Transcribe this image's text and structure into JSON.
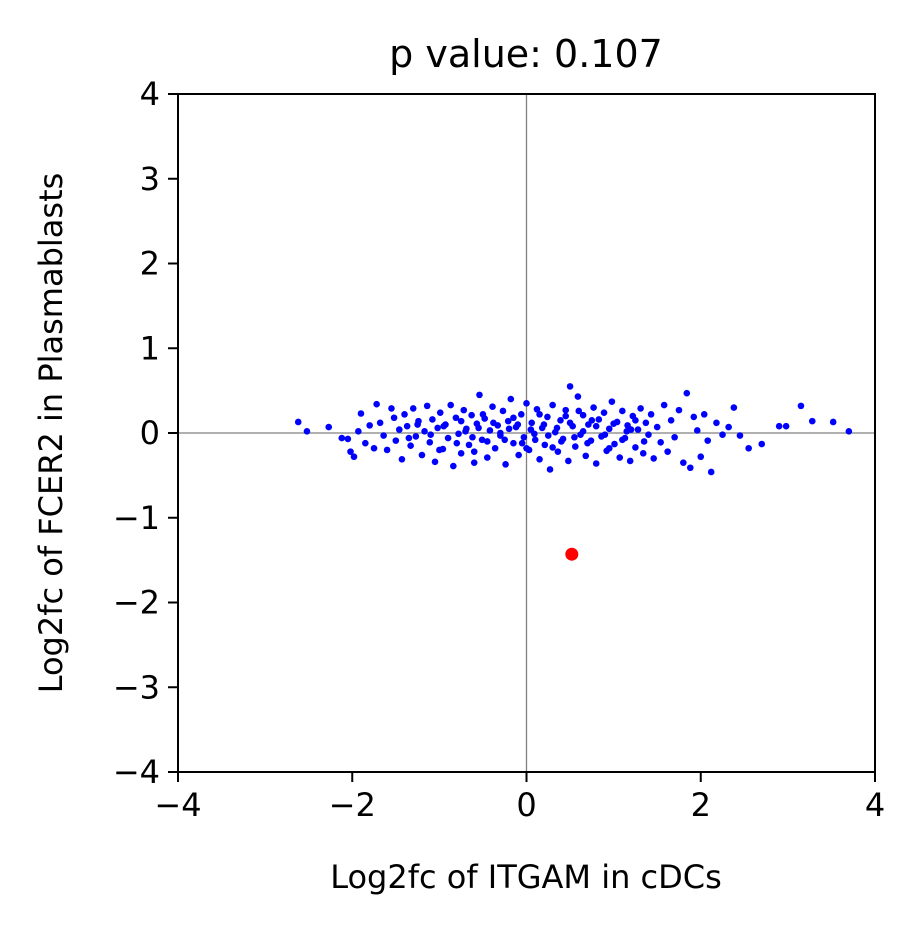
{
  "chart_data": {
    "type": "scatter",
    "title": "p value: 0.107",
    "xlabel": "Log2fc of ITGAM in cDCs",
    "ylabel": "Log2fc of FCER2 in Plasmablasts",
    "xlim": [
      -4,
      4
    ],
    "ylim": [
      -4,
      4
    ],
    "xticks": [
      -4,
      -2,
      0,
      2,
      4
    ],
    "yticks": [
      -4,
      -3,
      -2,
      -1,
      0,
      1,
      2,
      3,
      4
    ],
    "xtick_labels": [
      "−4",
      "−2",
      "0",
      "2",
      "4"
    ],
    "ytick_labels": [
      "−4",
      "−3",
      "−2",
      "−1",
      "0",
      "1",
      "2",
      "3",
      "4"
    ],
    "reference_lines": {
      "x": 0,
      "y": 0,
      "color": "#808080"
    },
    "grid": false,
    "colors": {
      "background_points": "#0000ff",
      "highlight_point": "#ff0000"
    },
    "series": [
      {
        "color": "#0000ff",
        "points": [
          [
            -2.62,
            0.13
          ],
          [
            -2.52,
            0.02
          ],
          [
            -2.27,
            0.07
          ],
          [
            -2.12,
            -0.06
          ],
          [
            -2.05,
            -0.07
          ],
          [
            -2.02,
            -0.22
          ],
          [
            -1.98,
            -0.28
          ],
          [
            -1.93,
            0.02
          ],
          [
            -1.9,
            0.23
          ],
          [
            -1.85,
            -0.12
          ],
          [
            -1.8,
            0.09
          ],
          [
            -1.75,
            -0.18
          ],
          [
            -1.72,
            0.34
          ],
          [
            -1.68,
            0.12
          ],
          [
            -1.64,
            -0.03
          ],
          [
            -1.6,
            -0.2
          ],
          [
            -1.55,
            0.29
          ],
          [
            -1.52,
            0.18
          ],
          [
            -1.5,
            -0.09
          ],
          [
            -1.46,
            0.04
          ],
          [
            -1.43,
            -0.31
          ],
          [
            -1.4,
            0.22
          ],
          [
            -1.37,
            0.08
          ],
          [
            -1.33,
            -0.15
          ],
          [
            -1.3,
            0.29
          ],
          [
            -1.27,
            -0.04
          ],
          [
            -1.24,
            0.14
          ],
          [
            -1.2,
            -0.26
          ],
          [
            -1.17,
            0.02
          ],
          [
            -1.14,
            0.32
          ],
          [
            -1.11,
            -0.11
          ],
          [
            -1.08,
            0.16
          ],
          [
            -1.05,
            -0.34
          ],
          [
            -1.02,
            0.06
          ],
          [
            -0.99,
            0.24
          ],
          [
            -0.96,
            -0.19
          ],
          [
            -0.93,
            0.1
          ],
          [
            -0.9,
            -0.06
          ],
          [
            -0.87,
            0.33
          ],
          [
            -0.84,
            -0.39
          ],
          [
            -0.81,
            0.18
          ],
          [
            -0.78,
            -0.01
          ],
          [
            -0.75,
            -0.24
          ],
          [
            -0.72,
            0.27
          ],
          [
            -0.69,
            0.05
          ],
          [
            -0.66,
            -0.14
          ],
          [
            -0.63,
            0.21
          ],
          [
            -0.6,
            -0.35
          ],
          [
            -0.57,
            0.11
          ],
          [
            -0.54,
            0.45
          ],
          [
            -0.51,
            -0.08
          ],
          [
            -0.48,
            0.17
          ],
          [
            -0.45,
            -0.29
          ],
          [
            -0.42,
            0.03
          ],
          [
            -0.39,
            0.31
          ],
          [
            -0.36,
            -0.18
          ],
          [
            -0.33,
            0.09
          ],
          [
            -0.3,
            -0.03
          ],
          [
            -0.27,
            0.26
          ],
          [
            -0.24,
            -0.37
          ],
          [
            -0.21,
            0.14
          ],
          [
            -0.18,
            0.4
          ],
          [
            -0.15,
            -0.12
          ],
          [
            -0.12,
            0.07
          ],
          [
            -0.09,
            -0.26
          ],
          [
            -0.06,
            0.22
          ],
          [
            -0.03,
            -0.05
          ],
          [
            0.0,
            0.35
          ],
          [
            0.03,
            -0.2
          ],
          [
            0.06,
            0.12
          ],
          [
            0.09,
            -0.01
          ],
          [
            0.12,
            0.28
          ],
          [
            0.15,
            -0.31
          ],
          [
            0.18,
            0.06
          ],
          [
            0.21,
            -0.14
          ],
          [
            0.24,
            0.19
          ],
          [
            0.27,
            -0.43
          ],
          [
            0.3,
            0.33
          ],
          [
            0.33,
            0.01
          ],
          [
            0.36,
            -0.22
          ],
          [
            0.39,
            0.15
          ],
          [
            0.42,
            -0.07
          ],
          [
            0.45,
            0.27
          ],
          [
            0.48,
            -0.33
          ],
          [
            0.5,
            0.55
          ],
          [
            0.53,
            0.08
          ],
          [
            0.56,
            -0.16
          ],
          [
            0.59,
            0.43
          ],
          [
            0.62,
            -0.02
          ],
          [
            0.65,
            0.21
          ],
          [
            0.68,
            -0.27
          ],
          [
            0.71,
            0.1
          ],
          [
            0.74,
            -0.09
          ],
          [
            0.77,
            0.3
          ],
          [
            0.8,
            -0.36
          ],
          [
            0.83,
            0.16
          ],
          [
            0.86,
            -0.04
          ],
          [
            0.89,
            0.24
          ],
          [
            0.92,
            -0.21
          ],
          [
            0.95,
            0.05
          ],
          [
            0.98,
            0.37
          ],
          [
            1.01,
            -0.13
          ],
          [
            1.04,
            0.13
          ],
          [
            1.07,
            -0.29
          ],
          [
            1.1,
            0.26
          ],
          [
            1.13,
            -0.06
          ],
          [
            1.16,
            0.09
          ],
          [
            1.19,
            -0.33
          ],
          [
            1.22,
            0.2
          ],
          [
            1.25,
            -0.17
          ],
          [
            1.28,
            0.04
          ],
          [
            1.31,
            0.29
          ],
          [
            1.34,
            -0.24
          ],
          [
            1.37,
            0.12
          ],
          [
            1.4,
            -0.02
          ],
          [
            1.43,
            0.22
          ],
          [
            1.46,
            -0.3
          ],
          [
            1.5,
            0.07
          ],
          [
            1.54,
            -0.11
          ],
          [
            1.58,
            0.33
          ],
          [
            1.62,
            -0.22
          ],
          [
            1.66,
            0.15
          ],
          [
            1.7,
            -0.05
          ],
          [
            1.75,
            0.27
          ],
          [
            1.8,
            -0.35
          ],
          [
            1.84,
            0.47
          ],
          [
            1.88,
            -0.41
          ],
          [
            1.92,
            0.19
          ],
          [
            1.96,
            0.03
          ],
          [
            2.0,
            -0.28
          ],
          [
            2.04,
            0.22
          ],
          [
            2.08,
            -0.09
          ],
          [
            2.12,
            -0.46
          ],
          [
            2.18,
            0.12
          ],
          [
            2.25,
            -0.02
          ],
          [
            2.32,
            0.07
          ],
          [
            2.38,
            0.3
          ],
          [
            2.45,
            -0.03
          ],
          [
            2.55,
            -0.18
          ],
          [
            2.7,
            -0.13
          ],
          [
            2.9,
            0.08
          ],
          [
            2.98,
            0.08
          ],
          [
            3.15,
            0.32
          ],
          [
            3.28,
            0.14
          ],
          [
            3.52,
            0.13
          ],
          [
            3.7,
            0.02
          ],
          [
            -1.25,
            0.1
          ],
          [
            -1.1,
            -0.02
          ],
          [
            -0.95,
            0.08
          ],
          [
            -0.8,
            -0.12
          ],
          [
            -0.7,
            0.02
          ],
          [
            -0.62,
            -0.05
          ],
          [
            -0.55,
            0.06
          ],
          [
            -0.45,
            -0.1
          ],
          [
            -0.38,
            0.12
          ],
          [
            -0.3,
            0.0
          ],
          [
            -0.25,
            -0.08
          ],
          [
            -0.2,
            0.05
          ],
          [
            -0.1,
            0.1
          ],
          [
            -0.05,
            -0.12
          ],
          [
            0.05,
            0.04
          ],
          [
            0.1,
            -0.08
          ],
          [
            0.2,
            0.1
          ],
          [
            0.25,
            -0.03
          ],
          [
            0.35,
            0.06
          ],
          [
            0.4,
            -0.1
          ],
          [
            0.5,
            0.12
          ],
          [
            0.55,
            -0.05
          ],
          [
            0.65,
            0.02
          ],
          [
            0.7,
            -0.12
          ],
          [
            0.8,
            0.08
          ],
          [
            0.9,
            -0.02
          ],
          [
            1.0,
            0.11
          ],
          [
            1.1,
            -0.08
          ],
          [
            1.2,
            0.04
          ],
          [
            1.35,
            -0.1
          ],
          [
            -1.0,
            -0.2
          ],
          [
            -0.5,
            0.22
          ],
          [
            0.0,
            -0.18
          ],
          [
            0.45,
            0.2
          ],
          [
            0.95,
            -0.18
          ],
          [
            -0.75,
            0.14
          ],
          [
            -0.15,
            0.18
          ],
          [
            0.3,
            -0.17
          ],
          [
            0.75,
            0.15
          ],
          [
            1.25,
            0.15
          ],
          [
            -1.35,
            -0.06
          ],
          [
            -0.6,
            -0.22
          ],
          [
            0.15,
            0.22
          ],
          [
            0.6,
            0.26
          ],
          [
            1.15,
            0.02
          ]
        ]
      },
      {
        "color": "#ff0000",
        "points": [
          [
            0.52,
            -1.43
          ]
        ]
      }
    ]
  }
}
